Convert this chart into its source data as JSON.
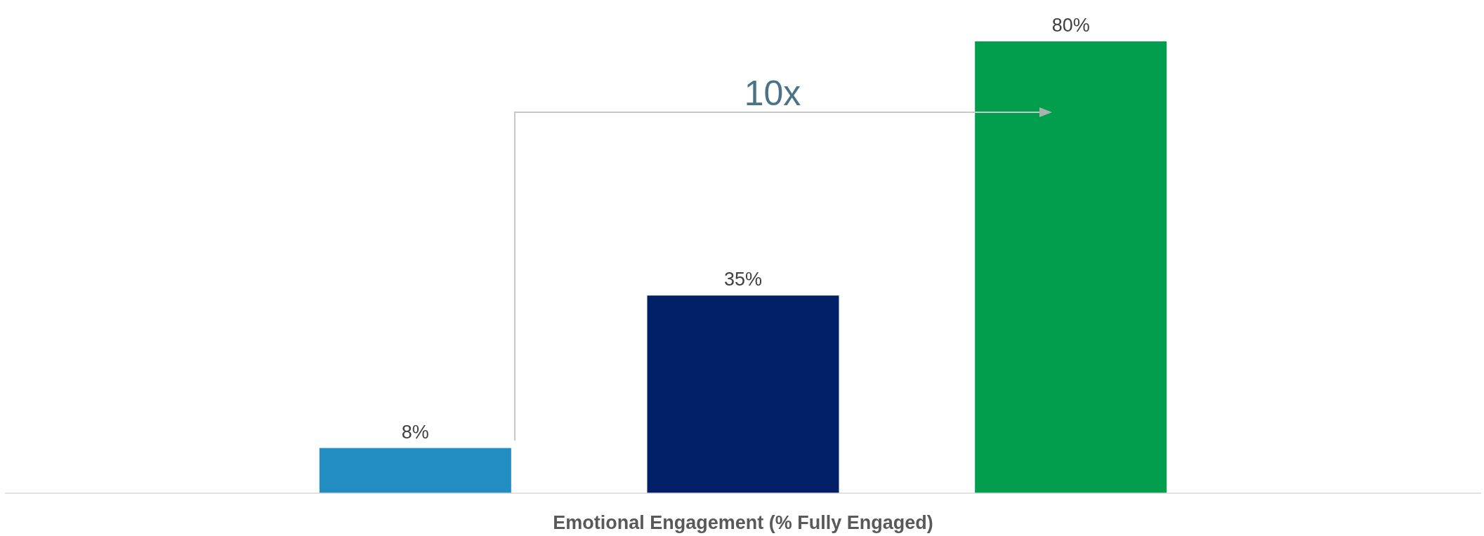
{
  "chart_data": {
    "type": "bar",
    "xlabel": "Emotional Engagement (% Fully Engaged)",
    "categories": [
      null,
      null,
      null
    ],
    "values": [
      8,
      35,
      80
    ],
    "colors": [
      "#228dc3",
      "#001f66",
      "#009e4d"
    ],
    "data_labels": true,
    "value_labels": [
      "8%",
      "35%",
      "80%"
    ],
    "annotations": [
      "10x"
    ]
  }
}
